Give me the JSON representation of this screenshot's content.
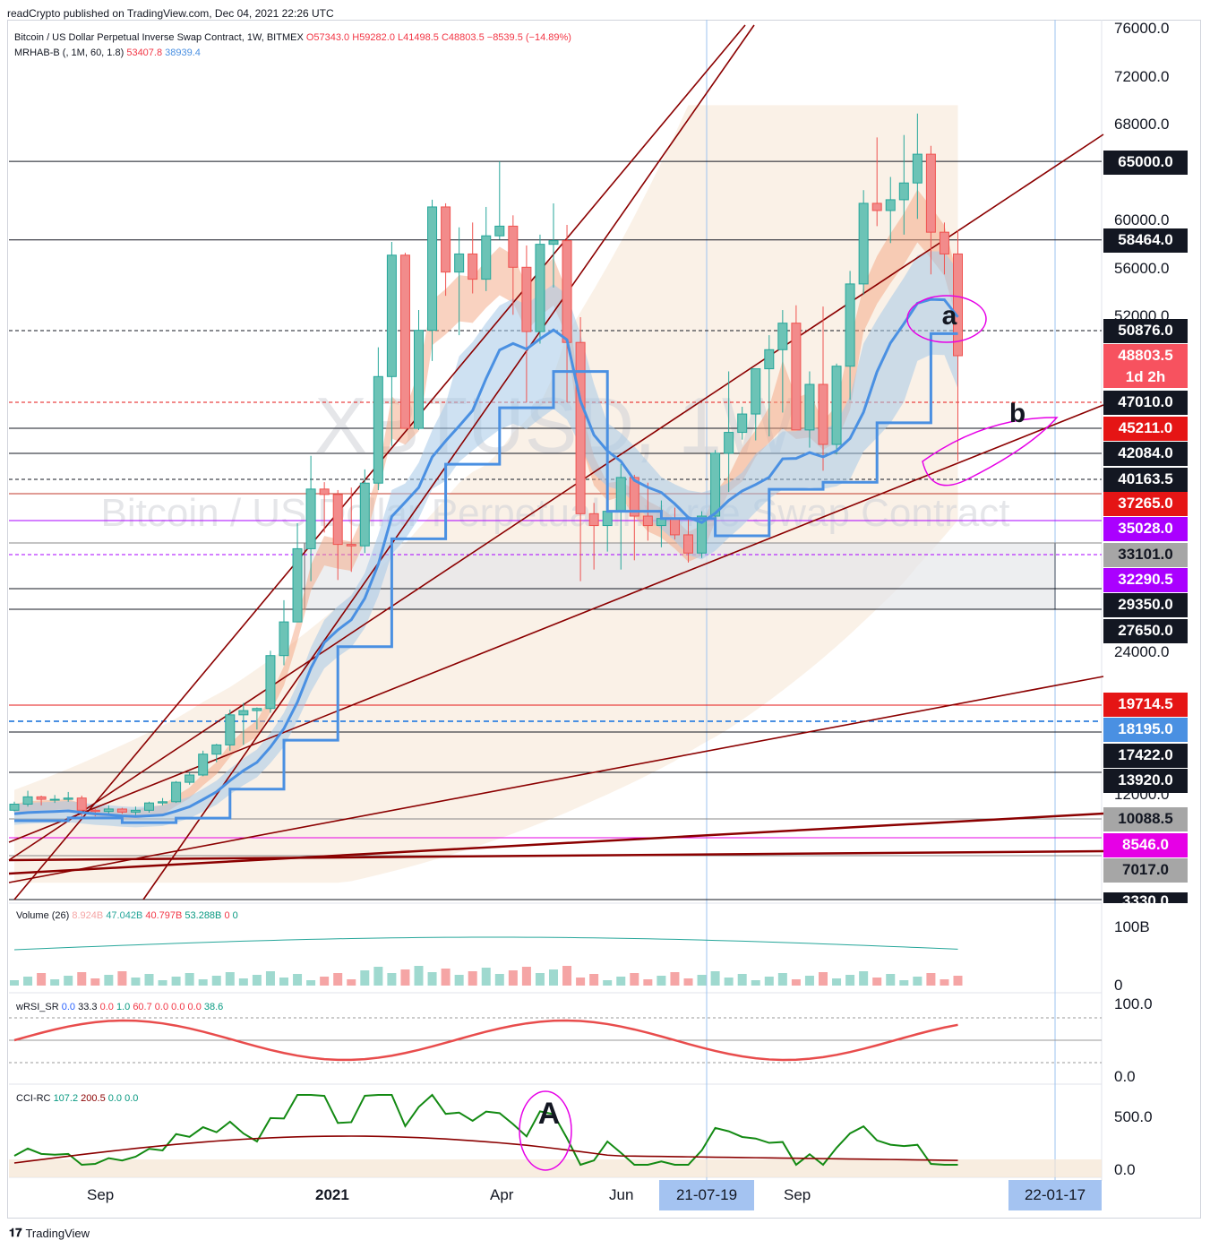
{
  "header": {
    "publisher_line": "readCrypto published on TradingView.com, Dec 04, 2021 22:26 UTC"
  },
  "legend": {
    "symbol": "Bitcoin / US Dollar Perpetual Inverse Swap Contract, 1W, BITMEX",
    "ohlc_open": "O57343.0",
    "ohlc_high": "H59282.0",
    "ohlc_low": "L41498.5",
    "ohlc_close": "C48803.5",
    "ohlc_change": "−8539.5 (−14.89%)",
    "indicator": "MRHAB-B (, 1M, 60, 1.8)",
    "indicator_v1": "53407.8",
    "indicator_v2": "38939.4"
  },
  "watermark": {
    "ticker": "XBTUSD, 1W",
    "name": "Bitcoin / US Dollar Perpetual Inverse Swap Contract"
  },
  "annotations": {
    "a": "a",
    "b": "b",
    "A": "A"
  },
  "panes": {
    "volume": {
      "label": "Volume (26)",
      "v1": "8.924B",
      "v2": "47.042B",
      "v3": "40.797B",
      "v4": "53.288B",
      "v5": "0",
      "v6": "0",
      "axis_top": "100B",
      "axis_bottom": "0"
    },
    "wrsi": {
      "label": "wRSI_SR",
      "v1": "0.0",
      "v2": "33.3",
      "v3": "0.0",
      "v4": "1.0",
      "v5": "60.7",
      "v6": "0.0",
      "v7": "0.0",
      "v8": "0.0",
      "v9": "38.6",
      "axis_top": "100.0",
      "axis_bottom": "0.0"
    },
    "cci": {
      "label": "CCI-RC",
      "v1": "107.2",
      "v2": "200.5",
      "v3": "0.0",
      "v4": "0.0",
      "axis_top": "500.0",
      "axis_bottom": "0.0"
    }
  },
  "price_axis": [
    "76000.0",
    "72000.0",
    "68000.0",
    "60000.0",
    "56000.0",
    "52000.0",
    "24000.0",
    "12000.0"
  ],
  "price_boxes": [
    {
      "label": "65000.0",
      "bg": "#131722",
      "fg": "#ffffff"
    },
    {
      "label": "58464.0",
      "bg": "#131722",
      "fg": "#ffffff"
    },
    {
      "label": "50876.0",
      "bg": "#131722",
      "fg": "#ffffff"
    },
    {
      "label": "48803.5",
      "bg": "#f7525f",
      "fg": "#ffffff"
    },
    {
      "label": "1d 2h",
      "bg": "#f7525f",
      "fg": "#ffffff"
    },
    {
      "label": "47010.0",
      "bg": "#131722",
      "fg": "#ffffff"
    },
    {
      "label": "45211.0",
      "bg": "#e51515",
      "fg": "#ffffff"
    },
    {
      "label": "42084.0",
      "bg": "#131722",
      "fg": "#ffffff"
    },
    {
      "label": "40163.5",
      "bg": "#131722",
      "fg": "#ffffff"
    },
    {
      "label": "37265.0",
      "bg": "#e51515",
      "fg": "#ffffff"
    },
    {
      "label": "35028.0",
      "bg": "#aa00ff",
      "fg": "#ffffff"
    },
    {
      "label": "33101.0",
      "bg": "#a6a6a6",
      "fg": "#131722"
    },
    {
      "label": "32290.5",
      "bg": "#aa00ff",
      "fg": "#ffffff"
    },
    {
      "label": "29350.0",
      "bg": "#131722",
      "fg": "#ffffff"
    },
    {
      "label": "27650.0",
      "bg": "#131722",
      "fg": "#ffffff"
    },
    {
      "label": "19714.5",
      "bg": "#e51515",
      "fg": "#ffffff"
    },
    {
      "label": "18195.0",
      "bg": "#4a90e2",
      "fg": "#ffffff"
    },
    {
      "label": "17422.0",
      "bg": "#131722",
      "fg": "#ffffff"
    },
    {
      "label": "13920.0",
      "bg": "#131722",
      "fg": "#ffffff"
    },
    {
      "label": "10088.5",
      "bg": "#a6a6a6",
      "fg": "#131722"
    },
    {
      "label": "8546.0",
      "bg": "#e600e6",
      "fg": "#ffffff"
    },
    {
      "label": "7017.0",
      "bg": "#a6a6a6",
      "fg": "#131722"
    },
    {
      "label": "3330.0",
      "bg": "#131722",
      "fg": "#ffffff"
    }
  ],
  "time_axis": [
    "Sep",
    "2021",
    "Apr",
    "Jun",
    "Sep"
  ],
  "time_boxes": [
    "21-07-19",
    "22-01-17"
  ],
  "footer": {
    "brand": "TradingView"
  },
  "colors": {
    "up": "#26a69a",
    "down": "#ef5350",
    "trendline": "#8b0000",
    "ma_blue": "#4a90e2"
  },
  "chart_data": {
    "type": "candlestick",
    "title": "Bitcoin / US Dollar Perpetual Inverse Swap Contract, 1W, BITMEX",
    "price_scale": "log",
    "ylim": [
      3330,
      76000
    ],
    "key_levels": [
      65000,
      58464,
      50876,
      47010,
      45211,
      42084,
      40163.5,
      37265,
      35028,
      33101,
      32290.5,
      29350,
      27650,
      19714.5,
      18195,
      17422,
      13920,
      10088.5,
      8546,
      7017,
      3330
    ],
    "last": {
      "open": 57343.0,
      "high": 59282.0,
      "low": 41498.5,
      "close": 48803.5,
      "change": -8539.5,
      "change_pct": -14.89
    },
    "mrhab": [
      53407.8,
      38939.4
    ],
    "candles": [
      [
        10800,
        11500,
        10700,
        11300
      ],
      [
        11300,
        12400,
        11100,
        11900
      ],
      [
        11900,
        12000,
        11200,
        11700
      ],
      [
        11700,
        12050,
        11400,
        11700
      ],
      [
        11700,
        12300,
        11500,
        11800
      ],
      [
        11800,
        12000,
        10200,
        10800
      ],
      [
        10800,
        10900,
        10300,
        10700
      ],
      [
        10700,
        11200,
        10500,
        10900
      ],
      [
        10900,
        11000,
        10500,
        10650
      ],
      [
        10650,
        11100,
        10400,
        10800
      ],
      [
        10800,
        11500,
        10600,
        11400
      ],
      [
        11400,
        11800,
        11200,
        11500
      ],
      [
        11500,
        13200,
        11400,
        13100
      ],
      [
        13100,
        13900,
        12900,
        13700
      ],
      [
        13700,
        15800,
        13600,
        15500
      ],
      [
        15500,
        16400,
        14800,
        16300
      ],
      [
        16300,
        19300,
        15800,
        18800
      ],
      [
        18800,
        19900,
        16300,
        19200
      ],
      [
        19200,
        19500,
        17600,
        19400
      ],
      [
        19400,
        24200,
        19000,
        23800
      ],
      [
        23800,
        28400,
        23000,
        26600
      ],
      [
        26600,
        34800,
        26600,
        32700
      ],
      [
        32700,
        41900,
        30000,
        38200
      ],
      [
        38200,
        39600,
        34000,
        37200
      ],
      [
        37200,
        38000,
        30100,
        33000
      ],
      [
        33000,
        38500,
        30800,
        32900
      ],
      [
        32900,
        40900,
        32400,
        39400
      ],
      [
        39400,
        49500,
        38000,
        48000
      ],
      [
        48000,
        58300,
        43000,
        57200
      ],
      [
        57200,
        57400,
        45200,
        45200
      ],
      [
        45200,
        52600,
        45000,
        50900
      ],
      [
        50900,
        61800,
        48600,
        61200
      ],
      [
        61200,
        61500,
        53800,
        55800
      ],
      [
        55800,
        59500,
        50500,
        57300
      ],
      [
        57300,
        59900,
        54000,
        55200
      ],
      [
        55200,
        61200,
        54200,
        58800
      ],
      [
        58800,
        65000,
        58500,
        59600
      ],
      [
        59600,
        60500,
        52200,
        56200
      ],
      [
        56200,
        58000,
        47000,
        50800
      ],
      [
        50800,
        58900,
        49800,
        58100
      ],
      [
        58100,
        61500,
        54500,
        58400
      ],
      [
        58400,
        59700,
        47000,
        49900
      ],
      [
        49900,
        52000,
        30000,
        35600
      ],
      [
        35600,
        36500,
        31000,
        34600
      ],
      [
        34600,
        37800,
        32500,
        35800
      ],
      [
        35800,
        41300,
        31000,
        40300
      ],
      [
        40300,
        40500,
        31800,
        35400
      ],
      [
        35400,
        39500,
        33300,
        34600
      ],
      [
        34600,
        36700,
        32800,
        35200
      ],
      [
        35200,
        36100,
        33400,
        33800
      ],
      [
        33800,
        35300,
        31600,
        32400
      ],
      [
        32400,
        35800,
        32000,
        35400
      ],
      [
        35400,
        42500,
        34600,
        42100
      ],
      [
        42100,
        48200,
        37600,
        44700
      ],
      [
        44700,
        46700,
        43800,
        46200
      ],
      [
        46200,
        48200,
        43700,
        48300
      ],
      [
        48300,
        50500,
        44200,
        49300
      ],
      [
        49300,
        52600,
        46300,
        51500
      ],
      [
        51500,
        53000,
        45600,
        45000
      ],
      [
        45000,
        48200,
        42800,
        47700
      ],
      [
        47700,
        52900,
        40800,
        43200
      ],
      [
        43200,
        48500,
        42000,
        48400
      ],
      [
        48400,
        55900,
        47100,
        54800
      ],
      [
        54800,
        62600,
        53900,
        61500
      ],
      [
        61500,
        67000,
        59600,
        60900
      ],
      [
        60900,
        63700,
        58200,
        61800
      ],
      [
        61800,
        67200,
        58900,
        63200
      ],
      [
        63200,
        69000,
        60200,
        65600
      ],
      [
        65600,
        66300,
        55600,
        59100
      ],
      [
        59100,
        59900,
        55600,
        57300
      ],
      [
        57300,
        59282,
        41498.5,
        48803.5
      ]
    ],
    "volume_pane": {
      "title": "Volume (26)",
      "values": [
        "8.924B",
        "47.042B",
        "40.797B",
        "53.288B",
        "0",
        "0"
      ]
    },
    "rsi_pane": {
      "title": "wRSI_SR",
      "values": [
        0.0,
        33.3,
        0.0,
        1.0,
        60.7,
        0.0,
        0.0,
        0.0,
        38.6
      ]
    },
    "cci_pane": {
      "title": "CCI-RC",
      "values": [
        107.2,
        200.5,
        0.0,
        0.0
      ]
    }
  }
}
